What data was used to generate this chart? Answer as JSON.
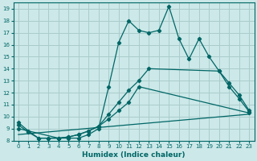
{
  "xlabel": "Humidex (Indice chaleur)",
  "bg_color": "#cce8e8",
  "grid_color": "#aacccc",
  "line_color": "#006666",
  "xlim": [
    -0.5,
    23.5
  ],
  "ylim": [
    8,
    19.5
  ],
  "xticks": [
    0,
    1,
    2,
    3,
    4,
    5,
    6,
    7,
    8,
    9,
    10,
    11,
    12,
    13,
    14,
    15,
    16,
    17,
    18,
    19,
    20,
    21,
    22,
    23
  ],
  "yticks": [
    8,
    9,
    10,
    11,
    12,
    13,
    14,
    15,
    16,
    17,
    18,
    19
  ],
  "line1_x": [
    0,
    1,
    2,
    3,
    4,
    5,
    6,
    7,
    8,
    9,
    10,
    11,
    12,
    13,
    14,
    15,
    16,
    17,
    18,
    19,
    20,
    21,
    22,
    23
  ],
  "line1_y": [
    9.5,
    8.8,
    8.2,
    8.2,
    8.2,
    8.2,
    8.2,
    8.5,
    9.0,
    12.5,
    16.2,
    18.0,
    17.2,
    17.0,
    17.2,
    19.2,
    16.5,
    14.8,
    16.5,
    15.0,
    13.8,
    12.8,
    11.8,
    10.5
  ],
  "line2_x": [
    0,
    1,
    2,
    3,
    4,
    5,
    6,
    7,
    8,
    9,
    10,
    11,
    12,
    13,
    20,
    21,
    22,
    23
  ],
  "line2_y": [
    9.3,
    8.7,
    8.2,
    8.2,
    8.2,
    8.3,
    8.5,
    8.8,
    9.2,
    10.2,
    11.2,
    12.2,
    13.0,
    14.0,
    13.8,
    12.5,
    11.5,
    10.4
  ],
  "line3_x": [
    0,
    4,
    5,
    6,
    7,
    8,
    9,
    10,
    11,
    12,
    23
  ],
  "line3_y": [
    9.0,
    8.2,
    8.3,
    8.5,
    8.8,
    9.2,
    9.8,
    10.5,
    11.2,
    12.5,
    10.3
  ],
  "line4_x": [
    0,
    23
  ],
  "line4_y": [
    8.5,
    10.2
  ]
}
